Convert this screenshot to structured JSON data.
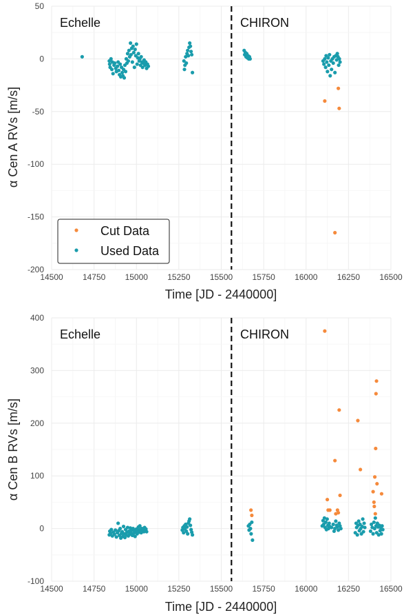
{
  "chart_data": [
    {
      "type": "scatter",
      "xlabel": "Time [JD - 2440000]",
      "ylabel": "α Cen A RVs [m/s]",
      "xlim": [
        14500,
        16500
      ],
      "ylim": [
        -200,
        50
      ],
      "xticks": [
        14500,
        14750,
        15000,
        15250,
        15500,
        15750,
        16000,
        16250,
        16500
      ],
      "yticks": [
        -200,
        -150,
        -100,
        -50,
        0,
        50
      ],
      "grid": true,
      "divider_x": 15560,
      "region_labels": [
        "Echelle",
        "CHIRON"
      ],
      "legend": {
        "placement": "bottom-left",
        "entries": [
          "Cut Data",
          "Used Data"
        ]
      },
      "series": [
        {
          "name": "Cut Data",
          "color": "#f58a3c",
          "points": [
            [
              16110,
              -40
            ],
            [
              16170,
              -165
            ],
            [
              16190,
              -28
            ],
            [
              16195,
              -47
            ]
          ]
        },
        {
          "name": "Used Data",
          "color": "#1a9cac",
          "points": [
            [
              14680,
              2
            ],
            [
              14840,
              -2
            ],
            [
              14842,
              -5
            ],
            [
              14845,
              -8
            ],
            [
              14850,
              0
            ],
            [
              14855,
              -10
            ],
            [
              14858,
              -3
            ],
            [
              14862,
              -14
            ],
            [
              14868,
              -6
            ],
            [
              14872,
              -4
            ],
            [
              14878,
              -9
            ],
            [
              14882,
              -12
            ],
            [
              14888,
              -7
            ],
            [
              14892,
              -3
            ],
            [
              14896,
              -11
            ],
            [
              14900,
              -15
            ],
            [
              14904,
              -5
            ],
            [
              14908,
              -17
            ],
            [
              14912,
              -8
            ],
            [
              14916,
              -13
            ],
            [
              14920,
              -16
            ],
            [
              14924,
              -10
            ],
            [
              14928,
              -18
            ],
            [
              14932,
              -6
            ],
            [
              14936,
              -12
            ],
            [
              14940,
              0
            ],
            [
              14944,
              -4
            ],
            [
              14948,
              5
            ],
            [
              14952,
              -2
            ],
            [
              14956,
              8
            ],
            [
              14960,
              2
            ],
            [
              14965,
              15
            ],
            [
              14968,
              4
            ],
            [
              14972,
              10
            ],
            [
              14976,
              -3
            ],
            [
              14980,
              12
            ],
            [
              14984,
              6
            ],
            [
              14988,
              -8
            ],
            [
              14992,
              9
            ],
            [
              14996,
              3
            ],
            [
              15000,
              14
            ],
            [
              15004,
              -5
            ],
            [
              15008,
              1
            ],
            [
              15012,
              5
            ],
            [
              15016,
              -2
            ],
            [
              15020,
              0
            ],
            [
              15024,
              -6
            ],
            [
              15028,
              2
            ],
            [
              15032,
              -3
            ],
            [
              15036,
              -8
            ],
            [
              15040,
              -4
            ],
            [
              15045,
              -1
            ],
            [
              15050,
              -6
            ],
            [
              15055,
              -3
            ],
            [
              15060,
              -9
            ],
            [
              15065,
              -5
            ],
            [
              15070,
              -7
            ],
            [
              15280,
              -2
            ],
            [
              15283,
              -10
            ],
            [
              15286,
              -6
            ],
            [
              15290,
              2
            ],
            [
              15294,
              -4
            ],
            [
              15298,
              5
            ],
            [
              15302,
              8
            ],
            [
              15306,
              3
            ],
            [
              15310,
              11
            ],
            [
              15314,
              15
            ],
            [
              15318,
              12
            ],
            [
              15322,
              7
            ],
            [
              15326,
              4
            ],
            [
              15330,
              -13
            ],
            [
              15635,
              8
            ],
            [
              15638,
              4
            ],
            [
              15642,
              6
            ],
            [
              15646,
              2
            ],
            [
              15650,
              5
            ],
            [
              15654,
              1
            ],
            [
              15658,
              3
            ],
            [
              15662,
              0
            ],
            [
              15666,
              2
            ],
            [
              15670,
              0
            ],
            [
              16100,
              -2
            ],
            [
              16105,
              -5
            ],
            [
              16110,
              0
            ],
            [
              16115,
              -8
            ],
            [
              16118,
              3
            ],
            [
              16122,
              -3
            ],
            [
              16126,
              -12
            ],
            [
              16130,
              1
            ],
            [
              16134,
              -6
            ],
            [
              16138,
              4
            ],
            [
              16142,
              -16
            ],
            [
              16146,
              -2
            ],
            [
              16150,
              -10
            ],
            [
              16155,
              0
            ],
            [
              16160,
              -4
            ],
            [
              16165,
              2
            ],
            [
              16170,
              -13
            ],
            [
              16175,
              3
            ],
            [
              16180,
              -1
            ],
            [
              16184,
              5
            ],
            [
              16188,
              2
            ],
            [
              16192,
              -6
            ],
            [
              16196,
              0
            ],
            [
              16200,
              -3
            ]
          ]
        }
      ]
    },
    {
      "type": "scatter",
      "xlabel": "Time [JD - 2440000]",
      "ylabel": "α Cen B RVs [m/s]",
      "xlim": [
        14500,
        16500
      ],
      "ylim": [
        -100,
        400
      ],
      "xticks": [
        14500,
        14750,
        15000,
        15250,
        15500,
        15750,
        16000,
        16250,
        16500
      ],
      "yticks": [
        -100,
        0,
        100,
        200,
        300,
        400
      ],
      "grid": true,
      "divider_x": 15560,
      "region_labels": [
        "Echelle",
        "CHIRON"
      ],
      "series": [
        {
          "name": "Cut Data",
          "color": "#f58a3c",
          "points": [
            [
              16110,
              375
            ],
            [
              16125,
              55
            ],
            [
              16130,
              35
            ],
            [
              16140,
              35
            ],
            [
              16170,
              129
            ],
            [
              16175,
              28
            ],
            [
              16185,
              35
            ],
            [
              16190,
              30
            ],
            [
              16195,
              225
            ],
            [
              16200,
              63
            ],
            [
              16305,
              205
            ],
            [
              16320,
              112
            ],
            [
              16395,
              70
            ],
            [
              16400,
              50
            ],
            [
              16402,
              42
            ],
            [
              16405,
              98
            ],
            [
              16408,
              28
            ],
            [
              16410,
              152
            ],
            [
              16412,
              256
            ],
            [
              16415,
              280
            ],
            [
              16418,
              85
            ],
            [
              16445,
              66
            ],
            [
              15675,
              35
            ],
            [
              15680,
              25
            ]
          ]
        },
        {
          "name": "Used Data",
          "color": "#1a9cac",
          "points": [
            [
              14840,
              -12
            ],
            [
              14843,
              -5
            ],
            [
              14847,
              -9
            ],
            [
              14852,
              -2
            ],
            [
              14858,
              -14
            ],
            [
              14864,
              -7
            ],
            [
              14870,
              -11
            ],
            [
              14876,
              -3
            ],
            [
              14882,
              -16
            ],
            [
              14888,
              -8
            ],
            [
              14892,
              10
            ],
            [
              14896,
              -4
            ],
            [
              14900,
              -13
            ],
            [
              14904,
              0
            ],
            [
              14908,
              -18
            ],
            [
              14912,
              -9
            ],
            [
              14916,
              -6
            ],
            [
              14920,
              -15
            ],
            [
              14924,
              4
            ],
            [
              14928,
              -10
            ],
            [
              14932,
              -17
            ],
            [
              14936,
              -2
            ],
            [
              14940,
              -12
            ],
            [
              14944,
              -7
            ],
            [
              14948,
              2
            ],
            [
              14952,
              -14
            ],
            [
              14956,
              -5
            ],
            [
              14960,
              -11
            ],
            [
              14964,
              1
            ],
            [
              14968,
              -8
            ],
            [
              14972,
              -3
            ],
            [
              14976,
              -13
            ],
            [
              14980,
              0
            ],
            [
              14984,
              -9
            ],
            [
              14988,
              -4
            ],
            [
              14992,
              -15
            ],
            [
              14996,
              -6
            ],
            [
              15000,
              -1
            ],
            [
              15004,
              -10
            ],
            [
              15008,
              -3
            ],
            [
              15012,
              3
            ],
            [
              15016,
              -7
            ],
            [
              15020,
              5
            ],
            [
              15024,
              -2
            ],
            [
              15028,
              -8
            ],
            [
              15032,
              0
            ],
            [
              15036,
              -5
            ],
            [
              15040,
              -3
            ],
            [
              15044,
              -6
            ],
            [
              15048,
              2
            ],
            [
              15052,
              -4
            ],
            [
              15056,
              -1
            ],
            [
              15060,
              -6
            ],
            [
              15270,
              -3
            ],
            [
              15274,
              2
            ],
            [
              15278,
              -8
            ],
            [
              15282,
              5
            ],
            [
              15286,
              -1
            ],
            [
              15290,
              8
            ],
            [
              15294,
              -5
            ],
            [
              15298,
              3
            ],
            [
              15302,
              -10
            ],
            [
              15306,
              10
            ],
            [
              15310,
              14
            ],
            [
              15314,
              18
            ],
            [
              15318,
              6
            ],
            [
              15322,
              -2
            ],
            [
              15326,
              -7
            ],
            [
              15330,
              -12
            ],
            [
              15660,
              5
            ],
            [
              15664,
              -3
            ],
            [
              15668,
              8
            ],
            [
              15672,
              0
            ],
            [
              15676,
              -10
            ],
            [
              15680,
              12
            ],
            [
              15684,
              -22
            ],
            [
              16095,
              5
            ],
            [
              16100,
              15
            ],
            [
              16104,
              8
            ],
            [
              16108,
              20
            ],
            [
              16112,
              2
            ],
            [
              16116,
              12
            ],
            [
              16120,
              -2
            ],
            [
              16124,
              18
            ],
            [
              16128,
              6
            ],
            [
              16132,
              0
            ],
            [
              16136,
              10
            ],
            [
              16140,
              4
            ],
            [
              16150,
              2
            ],
            [
              16160,
              8
            ],
            [
              16165,
              -5
            ],
            [
              16170,
              0
            ],
            [
              16175,
              14
            ],
            [
              16180,
              6
            ],
            [
              16185,
              3
            ],
            [
              16190,
              -3
            ],
            [
              16195,
              10
            ],
            [
              16200,
              5
            ],
            [
              16205,
              0
            ],
            [
              16290,
              -8
            ],
            [
              16295,
              10
            ],
            [
              16298,
              2
            ],
            [
              16302,
              -12
            ],
            [
              16306,
              6
            ],
            [
              16310,
              14
            ],
            [
              16314,
              -4
            ],
            [
              16318,
              8
            ],
            [
              16322,
              0
            ],
            [
              16326,
              -10
            ],
            [
              16330,
              4
            ],
            [
              16334,
              18
            ],
            [
              16338,
              -6
            ],
            [
              16342,
              10
            ],
            [
              16346,
              2
            ],
            [
              16380,
              -5
            ],
            [
              16385,
              8
            ],
            [
              16390,
              2
            ],
            [
              16395,
              -10
            ],
            [
              16400,
              12
            ],
            [
              16404,
              0
            ],
            [
              16408,
              20
            ],
            [
              16412,
              5
            ],
            [
              16416,
              -8
            ],
            [
              16420,
              10
            ],
            [
              16424,
              3
            ],
            [
              16428,
              -12
            ],
            [
              16432,
              6
            ],
            [
              16436,
              -4
            ],
            [
              16440,
              2
            ],
            [
              16444,
              -10
            ],
            [
              16448,
              5
            ],
            [
              16452,
              -2
            ]
          ]
        }
      ]
    }
  ]
}
